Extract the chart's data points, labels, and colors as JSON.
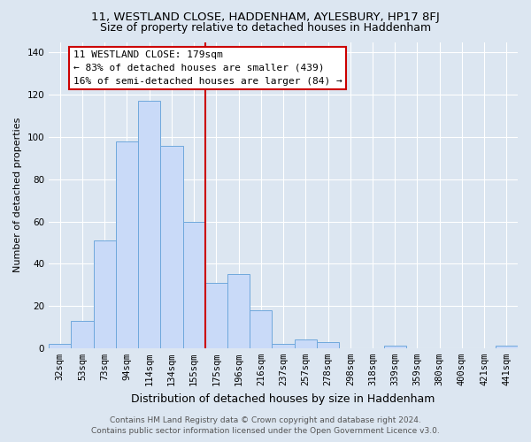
{
  "title": "11, WESTLAND CLOSE, HADDENHAM, AYLESBURY, HP17 8FJ",
  "subtitle": "Size of property relative to detached houses in Haddenham",
  "xlabel": "Distribution of detached houses by size in Haddenham",
  "ylabel": "Number of detached properties",
  "bar_labels": [
    "32sqm",
    "53sqm",
    "73sqm",
    "94sqm",
    "114sqm",
    "134sqm",
    "155sqm",
    "175sqm",
    "196sqm",
    "216sqm",
    "237sqm",
    "257sqm",
    "278sqm",
    "298sqm",
    "318sqm",
    "339sqm",
    "359sqm",
    "380sqm",
    "400sqm",
    "421sqm",
    "441sqm"
  ],
  "bar_heights": [
    2,
    13,
    51,
    98,
    117,
    96,
    60,
    31,
    35,
    18,
    2,
    4,
    3,
    0,
    0,
    1,
    0,
    0,
    0,
    0,
    1
  ],
  "bar_color": "#c9daf8",
  "bar_edge_color": "#6fa8dc",
  "vline_x_index": 7,
  "vline_color": "#cc0000",
  "ylim": [
    0,
    145
  ],
  "yticks": [
    0,
    20,
    40,
    60,
    80,
    100,
    120,
    140
  ],
  "annotation_title": "11 WESTLAND CLOSE: 179sqm",
  "annotation_line1": "← 83% of detached houses are smaller (439)",
  "annotation_line2": "16% of semi-detached houses are larger (84) →",
  "annotation_box_color": "#ffffff",
  "annotation_box_edge": "#cc0000",
  "footer_line1": "Contains HM Land Registry data © Crown copyright and database right 2024.",
  "footer_line2": "Contains public sector information licensed under the Open Government Licence v3.0.",
  "background_color": "#dce6f1",
  "plot_bg_color": "#dce6f1",
  "title_fontsize": 9.5,
  "subtitle_fontsize": 9,
  "xlabel_fontsize": 9,
  "ylabel_fontsize": 8,
  "tick_fontsize": 7.5,
  "annotation_fontsize": 8,
  "footer_fontsize": 6.5
}
